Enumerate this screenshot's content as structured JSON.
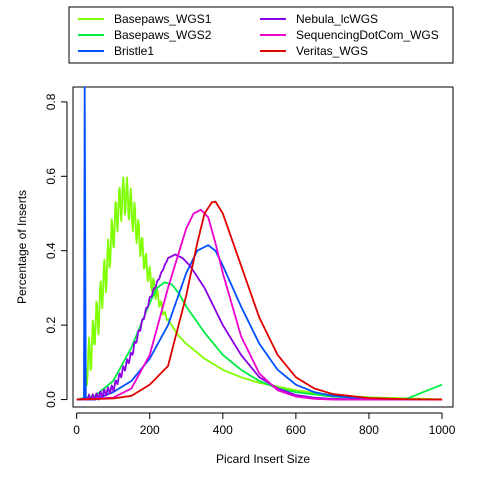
{
  "chart_data": {
    "type": "line",
    "title": "",
    "xlabel": "Picard Insert Size",
    "ylabel": "Percentage of Inserts",
    "xlim": [
      -10,
      1030
    ],
    "ylim": [
      -0.02,
      0.84
    ],
    "xticks": [
      0,
      200,
      400,
      600,
      800,
      1000
    ],
    "yticks": [
      0.0,
      0.2,
      0.4,
      0.6,
      0.8
    ],
    "xtick_labels": [
      "0",
      "200",
      "400",
      "600",
      "800",
      "1000"
    ],
    "ytick_labels": [
      "0.0",
      "0.2",
      "0.4",
      "0.6",
      "0.8"
    ],
    "grid": false,
    "legend_position": "top",
    "series": [
      {
        "name": "Basepaws_WGS1",
        "color": "#80ff00",
        "x": [
          20,
          30,
          40,
          50,
          60,
          70,
          80,
          90,
          100,
          110,
          120,
          130,
          140,
          150,
          160,
          170,
          180,
          190,
          200,
          220,
          240,
          260,
          280,
          300,
          350,
          400,
          450,
          500,
          550,
          600,
          650,
          700,
          800,
          900,
          1000
        ],
        "y": [
          0.05,
          0.1,
          0.13,
          0.2,
          0.23,
          0.3,
          0.34,
          0.4,
          0.45,
          0.5,
          0.53,
          0.55,
          0.54,
          0.51,
          0.48,
          0.44,
          0.4,
          0.36,
          0.33,
          0.28,
          0.23,
          0.2,
          0.17,
          0.15,
          0.11,
          0.08,
          0.06,
          0.045,
          0.035,
          0.025,
          0.018,
          0.012,
          0.006,
          0.003,
          0.001
        ],
        "oscillation": 0.055
      },
      {
        "name": "Basepaws_WGS2",
        "color": "#00ee44",
        "x": [
          0,
          50,
          100,
          150,
          200,
          220,
          240,
          260,
          280,
          300,
          350,
          400,
          450,
          500,
          550,
          600,
          700,
          800,
          900,
          1000
        ],
        "y": [
          0.0,
          0.01,
          0.05,
          0.14,
          0.26,
          0.3,
          0.315,
          0.31,
          0.285,
          0.25,
          0.18,
          0.12,
          0.08,
          0.05,
          0.03,
          0.02,
          0.008,
          0.003,
          0.001,
          0.04
        ]
      },
      {
        "name": "Bristle1",
        "color": "#0050ff",
        "x": [
          0,
          20,
          22,
          25,
          30,
          50,
          100,
          150,
          200,
          250,
          300,
          330,
          360,
          380,
          400,
          450,
          500,
          550,
          600,
          650,
          700,
          800,
          900,
          1000
        ],
        "y": [
          0.0,
          0.0,
          0.84,
          0.0,
          0.0,
          0.0,
          0.02,
          0.05,
          0.11,
          0.2,
          0.34,
          0.4,
          0.415,
          0.4,
          0.36,
          0.25,
          0.15,
          0.08,
          0.04,
          0.02,
          0.01,
          0.002,
          0.0,
          0.0
        ]
      },
      {
        "name": "Nebula_lcWGS",
        "color": "#8a00e6",
        "x": [
          0,
          50,
          100,
          150,
          200,
          250,
          270,
          290,
          310,
          350,
          400,
          450,
          500,
          550,
          600,
          650,
          700,
          800,
          900,
          1000
        ],
        "y": [
          0.0,
          0.005,
          0.03,
          0.12,
          0.27,
          0.38,
          0.39,
          0.38,
          0.36,
          0.3,
          0.2,
          0.12,
          0.06,
          0.03,
          0.012,
          0.005,
          0.002,
          0.0,
          0.0,
          0.0
        ],
        "oscillation": 0.01
      },
      {
        "name": "SequencingDotCom_WGS",
        "color": "#ee00cc",
        "x": [
          0,
          100,
          150,
          200,
          250,
          300,
          320,
          340,
          360,
          380,
          400,
          450,
          500,
          550,
          600,
          650,
          700,
          800,
          900,
          1000
        ],
        "y": [
          0.0,
          0.005,
          0.03,
          0.12,
          0.3,
          0.46,
          0.5,
          0.51,
          0.49,
          0.42,
          0.34,
          0.17,
          0.07,
          0.025,
          0.008,
          0.002,
          0.0,
          0.0,
          0.0,
          0.0
        ]
      },
      {
        "name": "Veritas_WGS",
        "color": "#e00000",
        "x": [
          0,
          100,
          150,
          200,
          250,
          300,
          330,
          350,
          370,
          380,
          400,
          450,
          500,
          550,
          600,
          650,
          700,
          800,
          900,
          1000
        ],
        "y": [
          0.0,
          0.003,
          0.01,
          0.04,
          0.09,
          0.28,
          0.42,
          0.5,
          0.53,
          0.532,
          0.5,
          0.36,
          0.22,
          0.12,
          0.06,
          0.03,
          0.015,
          0.004,
          0.001,
          0.0
        ]
      }
    ]
  }
}
